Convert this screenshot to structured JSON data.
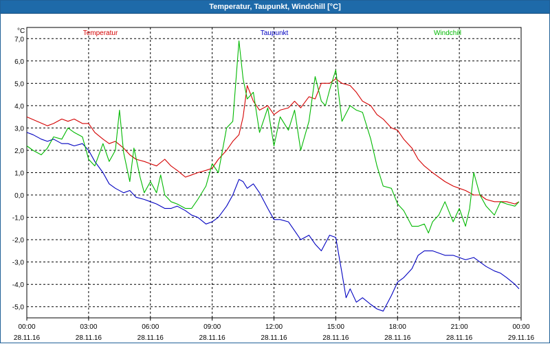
{
  "window": {
    "title": "Temperatur, Taupunkt, Windchill [°C]"
  },
  "colors": {
    "temperatur": "#d40000",
    "taupunkt": "#0000c0",
    "windchill": "#00b800",
    "titlebar": "#1e6aa9"
  },
  "chart_data": {
    "type": "line",
    "title": "Temperatur, Taupunkt, Windchill [°C]",
    "ylabel": "°C",
    "xlabel": "",
    "ylim": [
      -5.5,
      7.5
    ],
    "xlim": [
      0,
      24
    ],
    "grid": true,
    "legend": "top",
    "y_ticks": [
      "7,0",
      "6,0",
      "5,0",
      "4,0",
      "3,0",
      "2,0",
      "1,0",
      "0,0",
      "-1,0",
      "-2,0",
      "-3,0",
      "-4,0",
      "-5,0"
    ],
    "y_tick_values": [
      7,
      6,
      5,
      4,
      3,
      2,
      1,
      0,
      -1,
      -2,
      -3,
      -4,
      -5
    ],
    "x_ticks": [
      {
        "time": "00:00",
        "date": "28.11.16",
        "hour": 0
      },
      {
        "time": "03:00",
        "date": "28.11.16",
        "hour": 3
      },
      {
        "time": "06:00",
        "date": "28.11.16",
        "hour": 6
      },
      {
        "time": "09:00",
        "date": "28.11.16",
        "hour": 9
      },
      {
        "time": "12:00",
        "date": "28.11.16",
        "hour": 12
      },
      {
        "time": "15:00",
        "date": "28.11.16",
        "hour": 15
      },
      {
        "time": "18:00",
        "date": "28.11.16",
        "hour": 18
      },
      {
        "time": "21:00",
        "date": "28.11.16",
        "hour": 21
      },
      {
        "time": "00:00",
        "date": "29.11.16",
        "hour": 24
      }
    ],
    "series": [
      {
        "name": "Temperatur",
        "color": "#d40000",
        "x": [
          0,
          0.5,
          1,
          1.3,
          1.7,
          2,
          2.3,
          2.7,
          3,
          3.3,
          3.7,
          4,
          4.3,
          4.7,
          5,
          5.3,
          5.7,
          6,
          6.3,
          6.7,
          7,
          7.3,
          7.7,
          8,
          8.3,
          8.7,
          9,
          9.3,
          9.7,
          10,
          10.3,
          10.5,
          10.7,
          11,
          11.3,
          11.7,
          12,
          12.3,
          12.7,
          13,
          13.3,
          13.7,
          14,
          14.3,
          14.7,
          15,
          15.3,
          15.7,
          16,
          16.3,
          16.7,
          17,
          17.3,
          17.7,
          18,
          18.3,
          18.7,
          19,
          19.3,
          19.7,
          20,
          20.3,
          20.7,
          21,
          21.3,
          21.7,
          22,
          22.3,
          22.7,
          23,
          23.3,
          23.7,
          23.9
        ],
        "y": [
          3.5,
          3.3,
          3.1,
          3.2,
          3.4,
          3.3,
          3.4,
          3.2,
          3.2,
          2.8,
          2.5,
          2.3,
          2.4,
          2.1,
          1.8,
          1.6,
          1.5,
          1.4,
          1.3,
          1.6,
          1.3,
          1.1,
          0.8,
          0.9,
          1.0,
          1.1,
          1.2,
          1.6,
          2.0,
          2.4,
          2.7,
          3.5,
          4.9,
          4.2,
          3.8,
          4.0,
          3.6,
          3.8,
          3.9,
          4.2,
          3.9,
          4.4,
          4.3,
          5.0,
          5.0,
          5.2,
          5.0,
          4.9,
          4.6,
          4.2,
          4.0,
          3.6,
          3.4,
          3.0,
          2.9,
          2.5,
          2.1,
          1.6,
          1.3,
          1.0,
          0.8,
          0.6,
          0.4,
          0.3,
          0.2,
          0.0,
          0.0,
          -0.2,
          -0.3,
          -0.3,
          -0.3,
          -0.4,
          -0.3
        ]
      },
      {
        "name": "Taupunkt",
        "color": "#0000c0",
        "x": [
          0,
          0.3,
          0.7,
          1,
          1.3,
          1.7,
          2,
          2.3,
          2.7,
          3,
          3.3,
          3.7,
          4,
          4.3,
          4.7,
          5,
          5.3,
          5.7,
          6,
          6.3,
          6.7,
          7,
          7.3,
          7.7,
          8,
          8.3,
          8.7,
          9,
          9.3,
          9.7,
          10,
          10.3,
          10.5,
          10.7,
          11,
          11.3,
          11.7,
          12,
          12.3,
          12.7,
          13,
          13.3,
          13.7,
          14,
          14.3,
          14.7,
          15,
          15.3,
          15.5,
          15.7,
          16,
          16.3,
          16.7,
          17,
          17.3,
          17.7,
          18,
          18.3,
          18.7,
          19,
          19.3,
          19.7,
          20,
          20.3,
          20.7,
          21,
          21.3,
          21.7,
          22,
          22.3,
          22.7,
          23,
          23.3,
          23.7,
          23.9
        ],
        "y": [
          2.8,
          2.7,
          2.5,
          2.4,
          2.5,
          2.3,
          2.3,
          2.2,
          2.3,
          2.0,
          1.5,
          1.0,
          0.5,
          0.3,
          0.1,
          0.2,
          -0.1,
          -0.2,
          -0.3,
          -0.4,
          -0.6,
          -0.6,
          -0.5,
          -0.7,
          -0.9,
          -1.0,
          -1.3,
          -1.2,
          -1.0,
          -0.5,
          0.0,
          0.7,
          0.6,
          0.3,
          0.5,
          0.1,
          -0.6,
          -1.1,
          -1.1,
          -1.2,
          -1.6,
          -2.0,
          -1.8,
          -2.2,
          -2.5,
          -1.8,
          -1.9,
          -3.5,
          -4.6,
          -4.2,
          -4.8,
          -4.6,
          -4.9,
          -5.1,
          -5.2,
          -4.5,
          -3.9,
          -3.7,
          -3.3,
          -2.7,
          -2.5,
          -2.5,
          -2.6,
          -2.7,
          -2.7,
          -2.8,
          -2.9,
          -2.8,
          -3.0,
          -3.2,
          -3.4,
          -3.5,
          -3.7,
          -4.0,
          -4.2
        ]
      },
      {
        "name": "Windchill",
        "color": "#00b800",
        "x": [
          0,
          0.3,
          0.7,
          1,
          1.3,
          1.7,
          2,
          2.3,
          2.7,
          3,
          3.3,
          3.7,
          4,
          4.3,
          4.5,
          4.7,
          5,
          5.2,
          5.5,
          5.7,
          6,
          6.3,
          6.5,
          6.7,
          7,
          7.3,
          7.7,
          8,
          8.3,
          8.7,
          9,
          9.3,
          9.7,
          10,
          10.3,
          10.5,
          10.7,
          11,
          11.3,
          11.7,
          12,
          12.3,
          12.7,
          13,
          13.3,
          13.7,
          14,
          14.3,
          14.5,
          14.7,
          15,
          15.3,
          15.7,
          16,
          16.3,
          16.7,
          17,
          17.3,
          17.7,
          18,
          18.3,
          18.7,
          19,
          19.3,
          19.5,
          19.7,
          20,
          20.3,
          20.7,
          21,
          21.3,
          21.5,
          21.7,
          22,
          22.3,
          22.7,
          23,
          23.3,
          23.7,
          23.9
        ],
        "y": [
          2.2,
          2.0,
          1.8,
          2.1,
          2.6,
          2.5,
          3.0,
          2.8,
          2.6,
          1.6,
          1.3,
          2.3,
          1.5,
          2.0,
          3.8,
          1.9,
          0.6,
          2.1,
          0.8,
          0.1,
          0.6,
          0.1,
          0.9,
          0.0,
          -0.3,
          -0.4,
          -0.6,
          -0.6,
          -0.2,
          0.4,
          1.4,
          1.0,
          3.0,
          3.3,
          6.9,
          5.2,
          4.3,
          4.6,
          2.8,
          3.9,
          2.2,
          3.5,
          2.9,
          3.8,
          2.0,
          3.3,
          5.3,
          4.2,
          4.0,
          4.7,
          5.6,
          3.3,
          4.0,
          3.8,
          3.7,
          2.5,
          1.3,
          0.4,
          0.3,
          -0.4,
          -0.7,
          -1.4,
          -1.4,
          -1.3,
          -1.7,
          -1.2,
          -0.9,
          -0.3,
          -1.2,
          -0.6,
          -1.4,
          -0.6,
          1.0,
          0.0,
          -0.5,
          -0.9,
          -0.3,
          -0.4,
          -0.5,
          -0.3
        ]
      }
    ]
  }
}
